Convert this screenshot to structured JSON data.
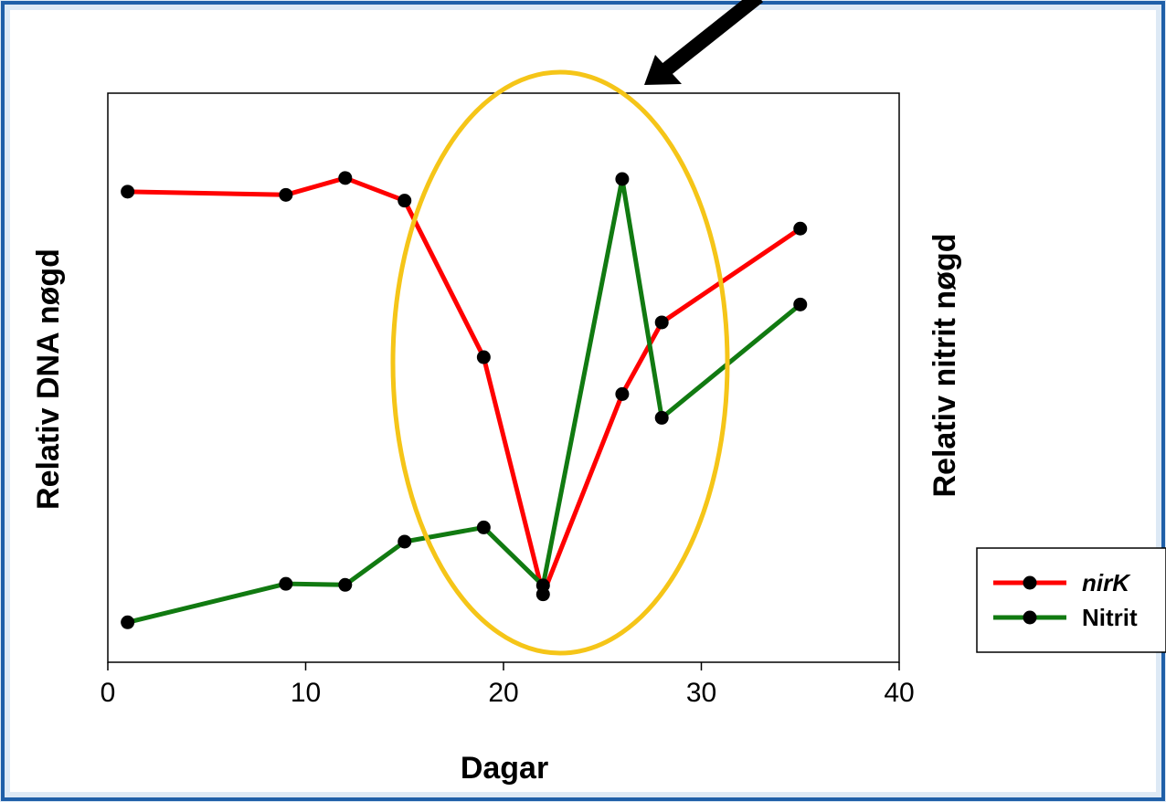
{
  "colors": {
    "frame": "#1f5fa8",
    "frame_glow": "#dde9f5",
    "ellipse": "#f5c518",
    "arrow": "#000000",
    "marker": "#000000"
  },
  "chart_data": {
    "type": "line",
    "xlabel": "Dagar",
    "ylabel_left": "Relativ DNA nøgd",
    "ylabel_right": "Relativ nitrit nøgd",
    "xlim": [
      0,
      40
    ],
    "ylim": [
      0,
      1
    ],
    "xticks": [
      0,
      10,
      20,
      30,
      40
    ],
    "grid": false,
    "legend_position": "right",
    "y_axis_unlabeled": true,
    "series": [
      {
        "name": "nirK",
        "name_italic": true,
        "color": "#ff0000",
        "x": [
          1,
          9,
          12,
          15,
          19,
          22,
          26,
          28,
          35
        ],
        "y": [
          0.872,
          0.866,
          0.898,
          0.855,
          0.558,
          0.108,
          0.488,
          0.624,
          0.802
        ]
      },
      {
        "name": "Nitrit",
        "name_italic": false,
        "color": "#117a11",
        "x": [
          1,
          9,
          12,
          15,
          19,
          22,
          26,
          28,
          35
        ],
        "y": [
          0.055,
          0.128,
          0.126,
          0.208,
          0.235,
          0.125,
          0.896,
          0.443,
          0.658
        ]
      }
    ],
    "annotations": [
      {
        "type": "ellipse",
        "label": "highlight around day 22-26"
      },
      {
        "type": "arrow",
        "label": "pointer to highlight"
      }
    ]
  }
}
